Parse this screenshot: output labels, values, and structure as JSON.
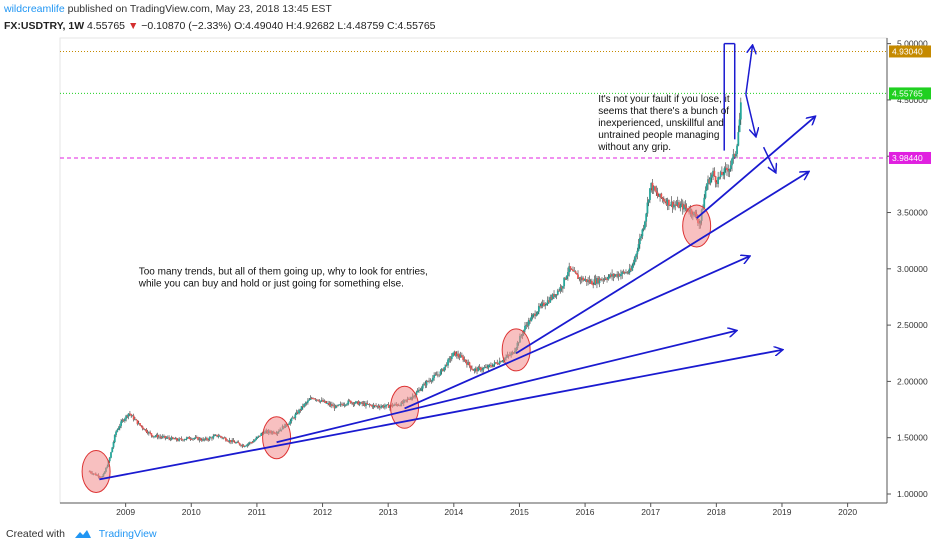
{
  "header": {
    "author": "wildcreamlife",
    "published": "published on TradingView.com, May 23, 2018 13:45 EST"
  },
  "quote": {
    "symbol": "FX:USDTRY, 1W",
    "last": "4.55765",
    "arrow": "▼",
    "change": "−0.10870 (−2.33%)",
    "ohlc": "O:4.49040 H:4.92682 L:4.48759 C:4.55765"
  },
  "footer": {
    "created": "Created with",
    "brand": "TradingView"
  },
  "colors": {
    "up": "#26a69a",
    "down": "#ef5350",
    "trend": "#1a1ad0",
    "note": "#c58a00",
    "price": "#1fd020",
    "magenta": "#e020e0",
    "circle": "#f28c8c"
  },
  "chart_data": {
    "type": "candlestick",
    "x_ticks": [
      "2009",
      "2010",
      "2011",
      "2012",
      "2013",
      "2014",
      "2015",
      "2016",
      "2017",
      "2018",
      "2019",
      "2020"
    ],
    "y_ticks": [
      "1.00000",
      "1.50000",
      "2.00000",
      "2.50000",
      "3.00000",
      "3.50000",
      "4.00000",
      "4.50000",
      "5.00000"
    ],
    "ylim": [
      0.92,
      5.05
    ],
    "xlim": [
      2008.0,
      2020.6
    ],
    "price_points": [
      [
        2008.45,
        1.2
      ],
      [
        2008.55,
        1.17
      ],
      [
        2008.65,
        1.15
      ],
      [
        2008.75,
        1.3
      ],
      [
        2008.85,
        1.55
      ],
      [
        2008.95,
        1.65
      ],
      [
        2009.05,
        1.72
      ],
      [
        2009.2,
        1.62
      ],
      [
        2009.4,
        1.52
      ],
      [
        2009.6,
        1.5
      ],
      [
        2009.8,
        1.48
      ],
      [
        2010.0,
        1.5
      ],
      [
        2010.2,
        1.48
      ],
      [
        2010.4,
        1.52
      ],
      [
        2010.6,
        1.47
      ],
      [
        2010.8,
        1.43
      ],
      [
        2010.95,
        1.47
      ],
      [
        2011.1,
        1.55
      ],
      [
        2011.3,
        1.55
      ],
      [
        2011.5,
        1.64
      ],
      [
        2011.7,
        1.78
      ],
      [
        2011.85,
        1.86
      ],
      [
        2012.0,
        1.82
      ],
      [
        2012.2,
        1.77
      ],
      [
        2012.4,
        1.82
      ],
      [
        2012.6,
        1.8
      ],
      [
        2012.8,
        1.78
      ],
      [
        2013.0,
        1.78
      ],
      [
        2013.2,
        1.8
      ],
      [
        2013.4,
        1.88
      ],
      [
        2013.6,
        2.0
      ],
      [
        2013.8,
        2.08
      ],
      [
        2014.0,
        2.25
      ],
      [
        2014.15,
        2.2
      ],
      [
        2014.3,
        2.1
      ],
      [
        2014.5,
        2.12
      ],
      [
        2014.7,
        2.18
      ],
      [
        2014.9,
        2.25
      ],
      [
        2015.1,
        2.5
      ],
      [
        2015.3,
        2.65
      ],
      [
        2015.5,
        2.75
      ],
      [
        2015.65,
        2.85
      ],
      [
        2015.75,
        3.0
      ],
      [
        2015.9,
        2.92
      ],
      [
        2016.1,
        2.88
      ],
      [
        2016.3,
        2.92
      ],
      [
        2016.5,
        2.95
      ],
      [
        2016.7,
        2.98
      ],
      [
        2016.9,
        3.4
      ],
      [
        2017.0,
        3.75
      ],
      [
        2017.1,
        3.65
      ],
      [
        2017.3,
        3.58
      ],
      [
        2017.5,
        3.55
      ],
      [
        2017.65,
        3.5
      ],
      [
        2017.75,
        3.4
      ],
      [
        2017.85,
        3.75
      ],
      [
        2017.95,
        3.85
      ],
      [
        2018.0,
        3.78
      ],
      [
        2018.1,
        3.85
      ],
      [
        2018.2,
        3.9
      ],
      [
        2018.3,
        4.05
      ],
      [
        2018.35,
        4.3
      ],
      [
        2018.39,
        4.55
      ]
    ],
    "levels": [
      {
        "value": 4.9304,
        "label": "4.93040",
        "color": "#c58a00",
        "style": "dotted"
      },
      {
        "value": 4.55765,
        "label": "4.55765",
        "color": "#1fd020",
        "style": "dotted"
      },
      {
        "value": 3.9844,
        "label": "3.98440",
        "color": "#e020e0",
        "style": "dashed"
      }
    ],
    "trendlines": [
      {
        "from": [
          2008.6,
          1.13
        ],
        "to": [
          2019.0,
          2.28
        ]
      },
      {
        "from": [
          2011.3,
          1.46
        ],
        "to": [
          2018.3,
          2.45
        ]
      },
      {
        "from": [
          2013.25,
          1.76
        ],
        "to": [
          2018.5,
          3.11
        ]
      },
      {
        "from": [
          2014.95,
          2.25
        ],
        "to": [
          2019.4,
          3.86
        ]
      },
      {
        "from": [
          2017.7,
          3.45
        ],
        "to": [
          2019.5,
          4.35
        ]
      }
    ],
    "circles": [
      [
        2008.55,
        1.2
      ],
      [
        2011.3,
        1.5
      ],
      [
        2013.25,
        1.77
      ],
      [
        2014.95,
        2.28
      ],
      [
        2017.7,
        3.38
      ]
    ],
    "annotations": [
      {
        "lines": [
          "Too many trends, but all of them going up, why to look for entries,",
          "while you can buy and hold or just going for something else."
        ],
        "x": 2009.2,
        "y": 2.95
      },
      {
        "lines": [
          "It's not your fault if you lose, it",
          "seems that there's a bunch of",
          "inexperienced, unskillful and",
          "untrained people managing",
          "without any grip."
        ],
        "x": 2016.2,
        "y": 4.48
      }
    ]
  }
}
